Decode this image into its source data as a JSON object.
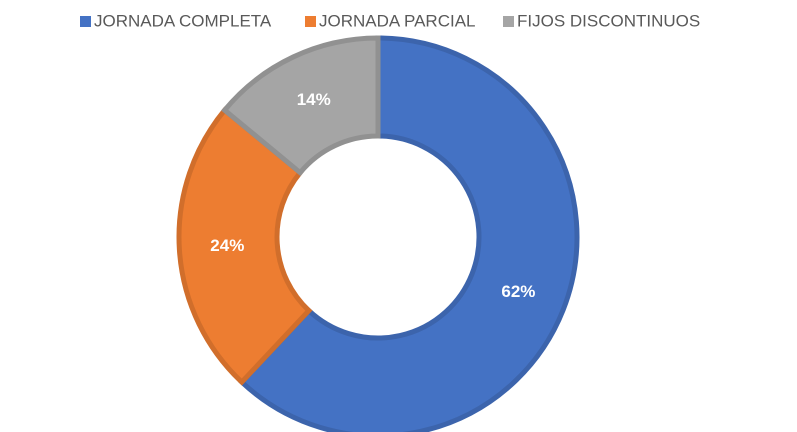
{
  "chart_data": {
    "type": "donut",
    "categories": [
      "JORNADA COMPLETA",
      "JORNADA PARCIAL",
      "FIJOS DISCONTINUOS"
    ],
    "values": [
      62,
      24,
      14
    ],
    "value_labels": [
      "62%",
      "24%",
      "14%"
    ],
    "colors": [
      "#4472c4",
      "#ed7d31",
      "#a5a5a5"
    ],
    "legend": "top"
  }
}
